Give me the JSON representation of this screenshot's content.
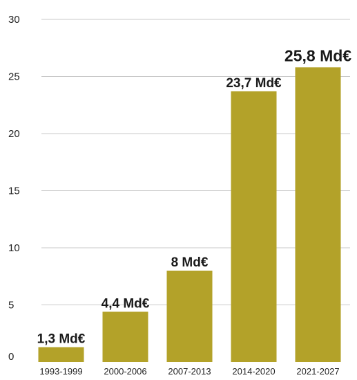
{
  "chart_data": {
    "type": "bar",
    "categories": [
      "1993-1999",
      "2000-2006",
      "2007-2013",
      "2014-2020",
      "2021-2027"
    ],
    "values": [
      1.3,
      4.4,
      8,
      23.7,
      25.8
    ],
    "data_labels": [
      "1,3 Md€",
      "4,4 Md€",
      "8 Md€",
      "23,7 Md€",
      "25,8 Md€"
    ],
    "y_ticks": [
      "0",
      "5",
      "10",
      "15",
      "20",
      "25",
      "30"
    ],
    "ylim": [
      0,
      30
    ],
    "grid": true,
    "title": "",
    "xlabel": "",
    "ylabel": "",
    "colors": {
      "bar": "#b3a229",
      "grid": "#c8c8c8",
      "text": "#222222"
    }
  }
}
